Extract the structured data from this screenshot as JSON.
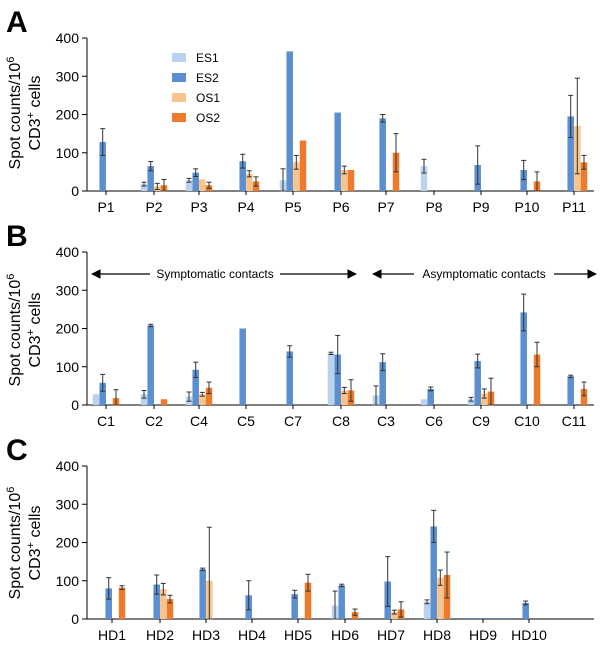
{
  "legend": [
    {
      "name": "ES1",
      "color": "#b9d3ee"
    },
    {
      "name": "ES2",
      "color": "#5b8fd0"
    },
    {
      "name": "OS1",
      "color": "#f7c48c"
    },
    {
      "name": "OS2",
      "color": "#ee7a2c"
    }
  ],
  "y_label": {
    "line1": "Spot counts/10",
    "sup1": "6",
    "line2": "CD3",
    "sup2": "+",
    "line2_tail": " cells"
  },
  "chart_data": [
    {
      "type": "bar",
      "panel": "A",
      "ylim": [
        0,
        400
      ],
      "yticks": [
        0,
        100,
        200,
        300,
        400
      ],
      "categories": [
        "P1",
        "P2",
        "P3",
        "P4",
        "P5",
        "P6",
        "P7",
        "P8",
        "P9",
        "P10",
        "P11"
      ],
      "series": [
        {
          "name": "ES1",
          "values": [
            null,
            18,
            28,
            null,
            28,
            null,
            null,
            65,
            null,
            null,
            null
          ],
          "errors": [
            null,
            5,
            5,
            null,
            30,
            null,
            null,
            18,
            null,
            null,
            null
          ]
        },
        {
          "name": "ES2",
          "values": [
            128,
            65,
            48,
            78,
            365,
            205,
            190,
            null,
            68,
            55,
            195
          ],
          "errors": [
            35,
            12,
            10,
            18,
            null,
            null,
            10,
            null,
            50,
            25,
            55
          ]
        },
        {
          "name": "OS1",
          "values": [
            null,
            12,
            30,
            45,
            75,
            55,
            null,
            null,
            null,
            null,
            170
          ],
          "errors": [
            null,
            8,
            null,
            8,
            18,
            10,
            null,
            null,
            null,
            null,
            125
          ]
        },
        {
          "name": "OS2",
          "values": [
            null,
            15,
            15,
            25,
            132,
            55,
            100,
            null,
            null,
            25,
            75
          ],
          "errors": [
            null,
            15,
            8,
            12,
            null,
            null,
            50,
            null,
            null,
            25,
            18
          ]
        }
      ]
    },
    {
      "type": "bar",
      "panel": "B",
      "ylim": [
        0,
        400
      ],
      "yticks": [
        0,
        100,
        200,
        300,
        400
      ],
      "categories": [
        "C1",
        "C2",
        "C4",
        "C5",
        "C7",
        "C8",
        "C3",
        "C6",
        "C9",
        "C10",
        "C11"
      ],
      "annotations": {
        "left": "Symptomatic contacts",
        "right": "Asymptomatic contacts"
      },
      "series": [
        {
          "name": "ES1",
          "values": [
            28,
            28,
            22,
            null,
            null,
            135,
            25,
            15,
            15,
            null,
            null
          ],
          "errors": [
            null,
            10,
            12,
            null,
            null,
            3,
            25,
            null,
            5,
            null,
            null
          ]
        },
        {
          "name": "ES2",
          "values": [
            58,
            208,
            92,
            200,
            140,
            132,
            112,
            42,
            115,
            242,
            75
          ],
          "errors": [
            22,
            3,
            20,
            null,
            15,
            50,
            22,
            5,
            18,
            48,
            3
          ]
        },
        {
          "name": "OS1",
          "values": [
            null,
            null,
            28,
            null,
            null,
            38,
            null,
            null,
            30,
            null,
            null
          ],
          "errors": [
            null,
            null,
            5,
            null,
            null,
            8,
            null,
            null,
            12,
            null,
            null
          ]
        },
        {
          "name": "OS2",
          "values": [
            18,
            15,
            45,
            null,
            null,
            38,
            null,
            null,
            35,
            132,
            42
          ],
          "errors": [
            22,
            null,
            15,
            null,
            null,
            28,
            null,
            null,
            35,
            32,
            18
          ]
        }
      ]
    },
    {
      "type": "bar",
      "panel": "C",
      "ylim": [
        0,
        400
      ],
      "yticks": [
        0,
        100,
        200,
        300,
        400
      ],
      "categories": [
        "HD1",
        "HD2",
        "HD3",
        "HD4",
        "HD5",
        "HD6",
        "HD7",
        "HD8",
        "HD9",
        "HD10"
      ],
      "series": [
        {
          "name": "ES1",
          "values": [
            null,
            null,
            null,
            null,
            null,
            35,
            null,
            45,
            null,
            null
          ],
          "errors": [
            null,
            null,
            null,
            null,
            null,
            38,
            null,
            5,
            null,
            null
          ]
        },
        {
          "name": "ES2",
          "values": [
            80,
            90,
            130,
            62,
            65,
            88,
            98,
            242,
            null,
            42
          ],
          "errors": [
            28,
            25,
            3,
            38,
            10,
            3,
            65,
            42,
            null,
            5
          ]
        },
        {
          "name": "OS1",
          "values": [
            null,
            78,
            100,
            null,
            null,
            null,
            18,
            108,
            null,
            null
          ],
          "errors": [
            null,
            15,
            140,
            null,
            null,
            null,
            5,
            20,
            null,
            null
          ]
        },
        {
          "name": "OS2",
          "values": [
            82,
            52,
            null,
            null,
            95,
            18,
            25,
            115,
            null,
            null
          ],
          "errors": [
            5,
            10,
            null,
            null,
            22,
            8,
            20,
            60,
            null,
            null
          ]
        }
      ]
    }
  ]
}
